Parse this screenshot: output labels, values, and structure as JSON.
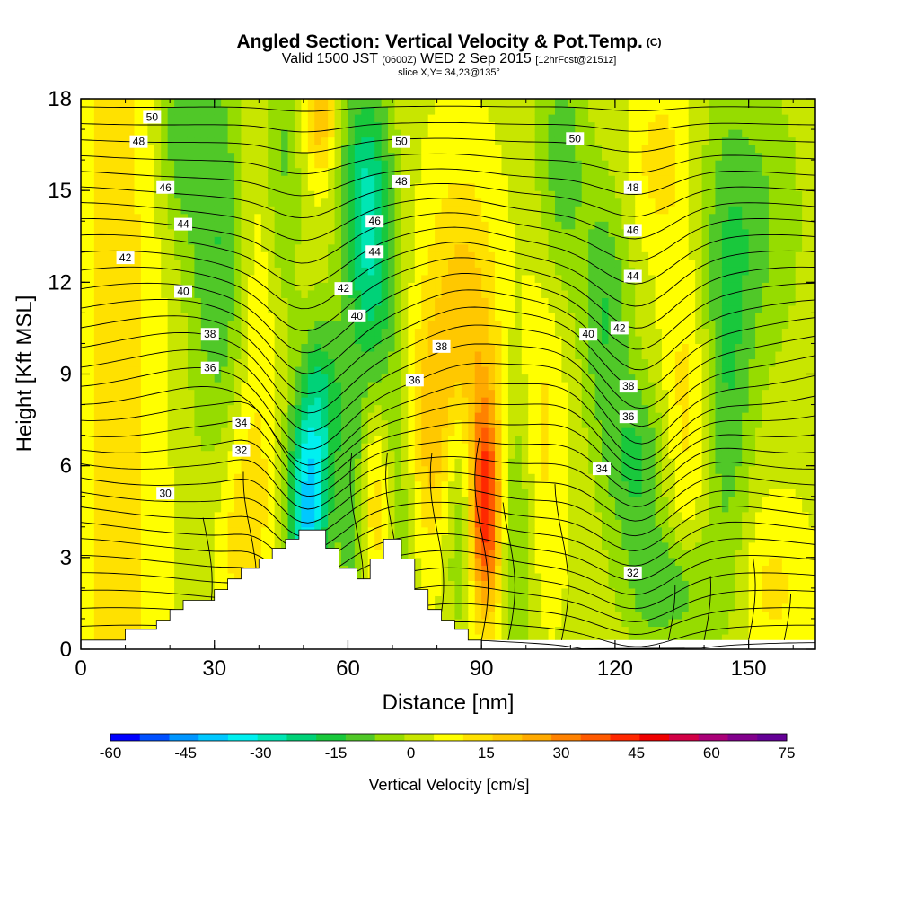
{
  "header": {
    "title": "Angled Section: Vertical Velocity & Pot.Temp.",
    "title_suffix": "(C)",
    "valid_prefix": "Valid 1500 JST",
    "valid_utc": "(0600Z)",
    "valid_date": "WED 2 Sep 2015",
    "forecast": "[12hrFcst@2151z]",
    "slice": "slice X,Y= 34,23@135°"
  },
  "chart_data": {
    "type": "heatmap",
    "xlabel": "Distance [nm]",
    "ylabel": "Height [Kft MSL]",
    "xlim": [
      0,
      165
    ],
    "ylim": [
      0,
      18
    ],
    "x_ticks": [
      0,
      30,
      60,
      90,
      120,
      150
    ],
    "y_ticks": [
      0,
      3,
      6,
      9,
      12,
      15,
      18
    ],
    "colorbar": {
      "title": "Vertical Velocity [cm/s]",
      "labels": [
        -60,
        -45,
        -30,
        -15,
        0,
        15,
        30,
        45,
        60,
        75
      ],
      "colors": [
        "#0000ff",
        "#0050ff",
        "#0096ff",
        "#00c8ff",
        "#00f0f0",
        "#00e6b4",
        "#00d278",
        "#19c83c",
        "#50c828",
        "#96dc00",
        "#c8e600",
        "#ffff00",
        "#ffe100",
        "#ffc800",
        "#ffaa00",
        "#ff8200",
        "#ff5a00",
        "#ff2800",
        "#f00000",
        "#d20046",
        "#aa0078",
        "#82008c",
        "#640096"
      ]
    },
    "overlay": {
      "name": "Pot.Temp.",
      "contour_labels": [
        {
          "value": "50",
          "x": 16,
          "y": 17.4
        },
        {
          "value": "48",
          "x": 13,
          "y": 16.6
        },
        {
          "value": "46",
          "x": 19,
          "y": 15.1
        },
        {
          "value": "44",
          "x": 23,
          "y": 13.9
        },
        {
          "value": "42",
          "x": 10,
          "y": 12.8
        },
        {
          "value": "40",
          "x": 23,
          "y": 11.7
        },
        {
          "value": "38",
          "x": 29,
          "y": 10.3
        },
        {
          "value": "36",
          "x": 29,
          "y": 9.2
        },
        {
          "value": "34",
          "x": 36,
          "y": 7.4
        },
        {
          "value": "32",
          "x": 36,
          "y": 6.5
        },
        {
          "value": "30",
          "x": 19,
          "y": 5.1
        },
        {
          "value": "50",
          "x": 72,
          "y": 16.6
        },
        {
          "value": "48",
          "x": 72,
          "y": 15.3
        },
        {
          "value": "46",
          "x": 66,
          "y": 14.0
        },
        {
          "value": "44",
          "x": 66,
          "y": 13.0
        },
        {
          "value": "42",
          "x": 59,
          "y": 11.8
        },
        {
          "value": "40",
          "x": 62,
          "y": 10.9
        },
        {
          "value": "38",
          "x": 81,
          "y": 9.9
        },
        {
          "value": "36",
          "x": 75,
          "y": 8.8
        },
        {
          "value": "50",
          "x": 111,
          "y": 16.7
        },
        {
          "value": "48",
          "x": 124,
          "y": 15.1
        },
        {
          "value": "46",
          "x": 124,
          "y": 13.7
        },
        {
          "value": "44",
          "x": 124,
          "y": 12.2
        },
        {
          "value": "42",
          "x": 121,
          "y": 10.5
        },
        {
          "value": "40",
          "x": 114,
          "y": 10.3
        },
        {
          "value": "38",
          "x": 123,
          "y": 8.6
        },
        {
          "value": "36",
          "x": 123,
          "y": 7.6
        },
        {
          "value": "34",
          "x": 117,
          "y": 5.9
        },
        {
          "value": "32",
          "x": 124,
          "y": 2.5
        }
      ]
    },
    "terrain": [
      [
        0,
        0.3
      ],
      [
        10,
        0.3
      ],
      [
        10,
        0.65
      ],
      [
        17,
        0.65
      ],
      [
        17,
        0.95
      ],
      [
        20,
        0.95
      ],
      [
        20,
        1.3
      ],
      [
        23,
        1.3
      ],
      [
        23,
        1.6
      ],
      [
        30,
        1.6
      ],
      [
        30,
        1.95
      ],
      [
        33,
        1.95
      ],
      [
        33,
        2.3
      ],
      [
        36,
        2.3
      ],
      [
        36,
        2.65
      ],
      [
        40,
        2.65
      ],
      [
        40,
        2.95
      ],
      [
        43,
        2.95
      ],
      [
        43,
        3.3
      ],
      [
        46,
        3.3
      ],
      [
        46,
        3.6
      ],
      [
        49,
        3.6
      ],
      [
        49,
        3.9
      ],
      [
        55,
        3.9
      ],
      [
        55,
        3.3
      ],
      [
        58,
        3.3
      ],
      [
        58,
        2.65
      ],
      [
        62,
        2.65
      ],
      [
        62,
        2.3
      ],
      [
        65,
        2.3
      ],
      [
        65,
        2.95
      ],
      [
        68,
        2.95
      ],
      [
        68,
        3.6
      ],
      [
        72,
        3.6
      ],
      [
        72,
        2.95
      ],
      [
        75,
        2.95
      ],
      [
        75,
        1.95
      ],
      [
        78,
        1.95
      ],
      [
        78,
        1.3
      ],
      [
        81,
        1.3
      ],
      [
        81,
        0.95
      ],
      [
        84,
        0.95
      ],
      [
        84,
        0.65
      ],
      [
        87,
        0.65
      ],
      [
        87,
        0.3
      ],
      [
        90,
        0.3
      ],
      [
        90,
        0
      ]
    ]
  }
}
